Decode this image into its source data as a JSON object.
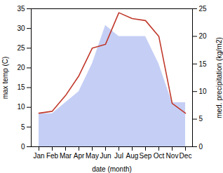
{
  "chart_data": {
    "type": "line",
    "categories": [
      "Jan",
      "Feb",
      "Mar",
      "Apr",
      "May",
      "Jun",
      "Jul",
      "Aug",
      "Sep",
      "Oct",
      "Nov",
      "Dec"
    ],
    "xlabel": "date (month)",
    "ylabel": "max temp (C)",
    "y2label": "med. precipitation (kg/m2)",
    "ylim": [
      0,
      35
    ],
    "yticks": [
      0,
      5,
      10,
      15,
      20,
      25,
      30,
      35
    ],
    "y2lim": [
      0,
      25
    ],
    "y2ticks": [
      0,
      5,
      10,
      15,
      20,
      25
    ],
    "grid": false,
    "series": [
      {
        "type": "area",
        "axis": "y2",
        "color": "#c5cff5",
        "values": [
          6.0,
          6.0,
          8.0,
          10.0,
          15.0,
          22.0,
          20.0,
          20.0,
          20.0,
          15.0,
          8.0,
          8.0
        ]
      },
      {
        "type": "line",
        "color": "#c0392b",
        "values": [
          8.5,
          9.0,
          13.0,
          18.0,
          25.0,
          26.0,
          34.0,
          32.5,
          32.0,
          28.0,
          11.0,
          8.5
        ]
      }
    ]
  }
}
